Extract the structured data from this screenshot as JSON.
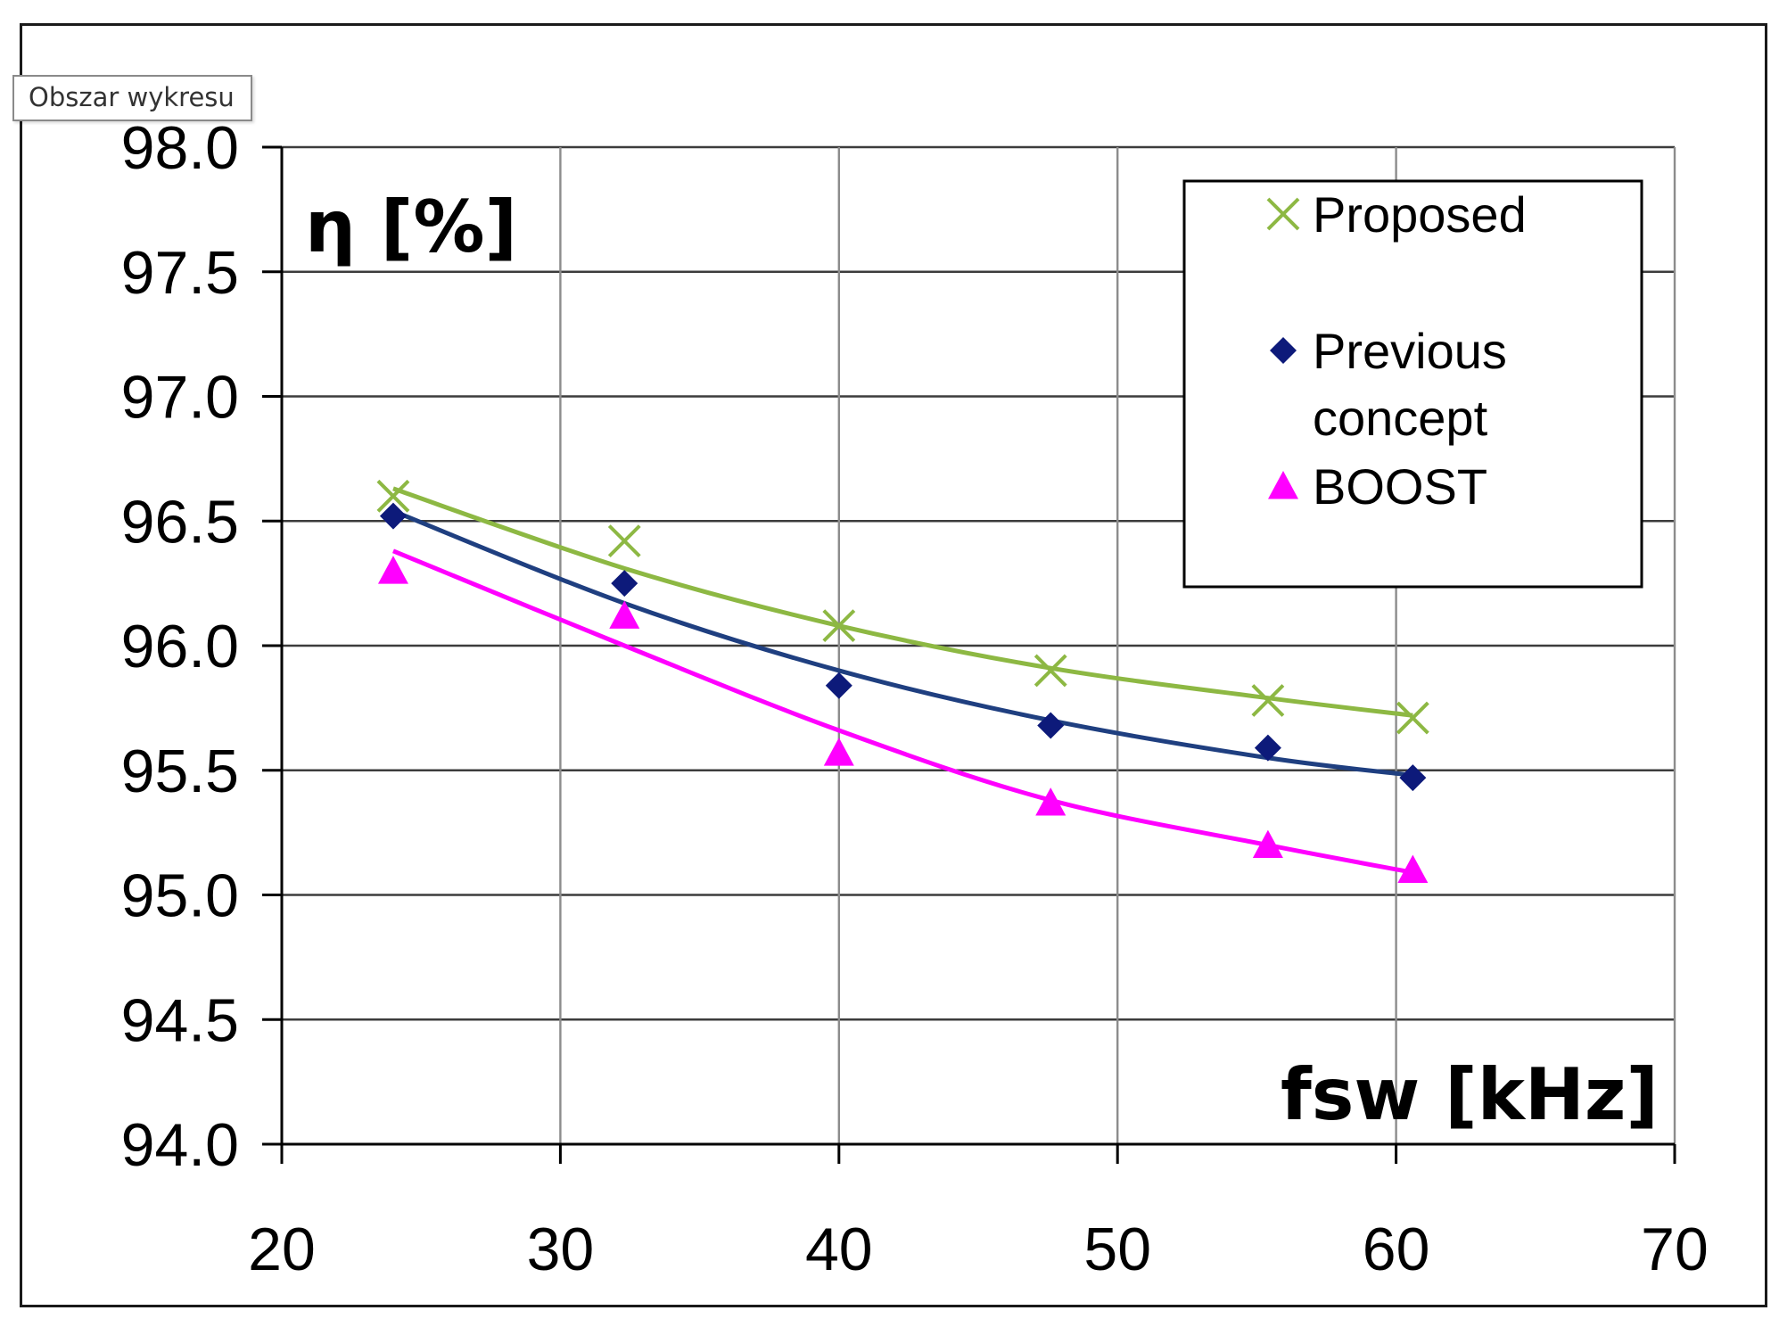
{
  "tooltip": {
    "text": "Obszar wykresu"
  },
  "chart_data": {
    "type": "scatter",
    "title": "",
    "ylabel": "η [%]",
    "xlabel": "fsw [kHz]",
    "xlim": [
      20,
      70
    ],
    "ylim": [
      94.0,
      98.0
    ],
    "xticks": [
      20,
      30,
      40,
      50,
      60,
      70
    ],
    "xtick_labels": [
      "20",
      "30",
      "40",
      "50",
      "60",
      "70"
    ],
    "yticks": [
      94.0,
      94.5,
      95.0,
      95.5,
      96.0,
      96.5,
      97.0,
      97.5,
      98.0
    ],
    "ytick_labels": [
      "94.0",
      "94.5",
      "95.0",
      "95.5",
      "96.0",
      "96.5",
      "97.0",
      "97.5",
      "98.0"
    ],
    "grid": true,
    "legend_position": "top-right",
    "series": [
      {
        "name": "Proposed",
        "marker": "x",
        "color": "#8db843",
        "x": [
          24,
          32.3,
          40,
          47.6,
          55.4,
          60.6
        ],
        "y": [
          96.6,
          96.42,
          96.08,
          95.9,
          95.78,
          95.71
        ],
        "trendline": [
          96.63,
          96.31,
          96.08,
          95.91,
          95.79,
          95.72
        ]
      },
      {
        "name": "Previous concept",
        "marker": "diamond",
        "color": "#1f3f80",
        "marker_color": "#0d1a7a",
        "x": [
          24,
          32.3,
          40,
          47.6,
          55.4,
          60.6
        ],
        "y": [
          96.52,
          96.25,
          95.84,
          95.68,
          95.59,
          95.47
        ],
        "trendline": [
          96.54,
          96.17,
          95.9,
          95.7,
          95.55,
          95.48
        ]
      },
      {
        "name": "BOOST",
        "marker": "triangle",
        "color": "#ff00ff",
        "x": [
          24,
          32.3,
          40,
          47.6,
          55.4,
          60.6
        ],
        "y": [
          96.3,
          96.12,
          95.57,
          95.37,
          95.2,
          95.1
        ],
        "trendline": [
          96.38,
          96.0,
          95.66,
          95.38,
          95.2,
          95.09
        ]
      }
    ]
  }
}
